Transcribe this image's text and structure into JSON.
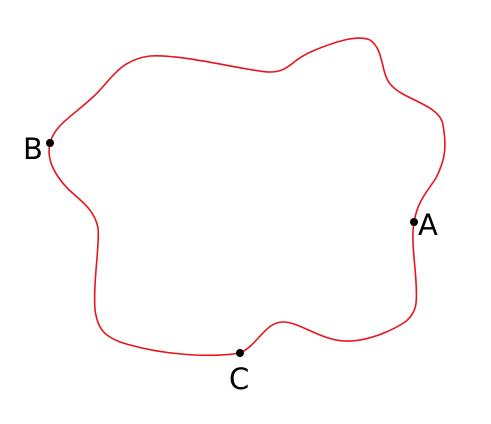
{
  "diagram": {
    "curve_color": "#e8141c",
    "point_color": "#000000",
    "points": [
      {
        "id": "A",
        "label": "A"
      },
      {
        "id": "B",
        "label": "B"
      },
      {
        "id": "C",
        "label": "C"
      }
    ]
  }
}
